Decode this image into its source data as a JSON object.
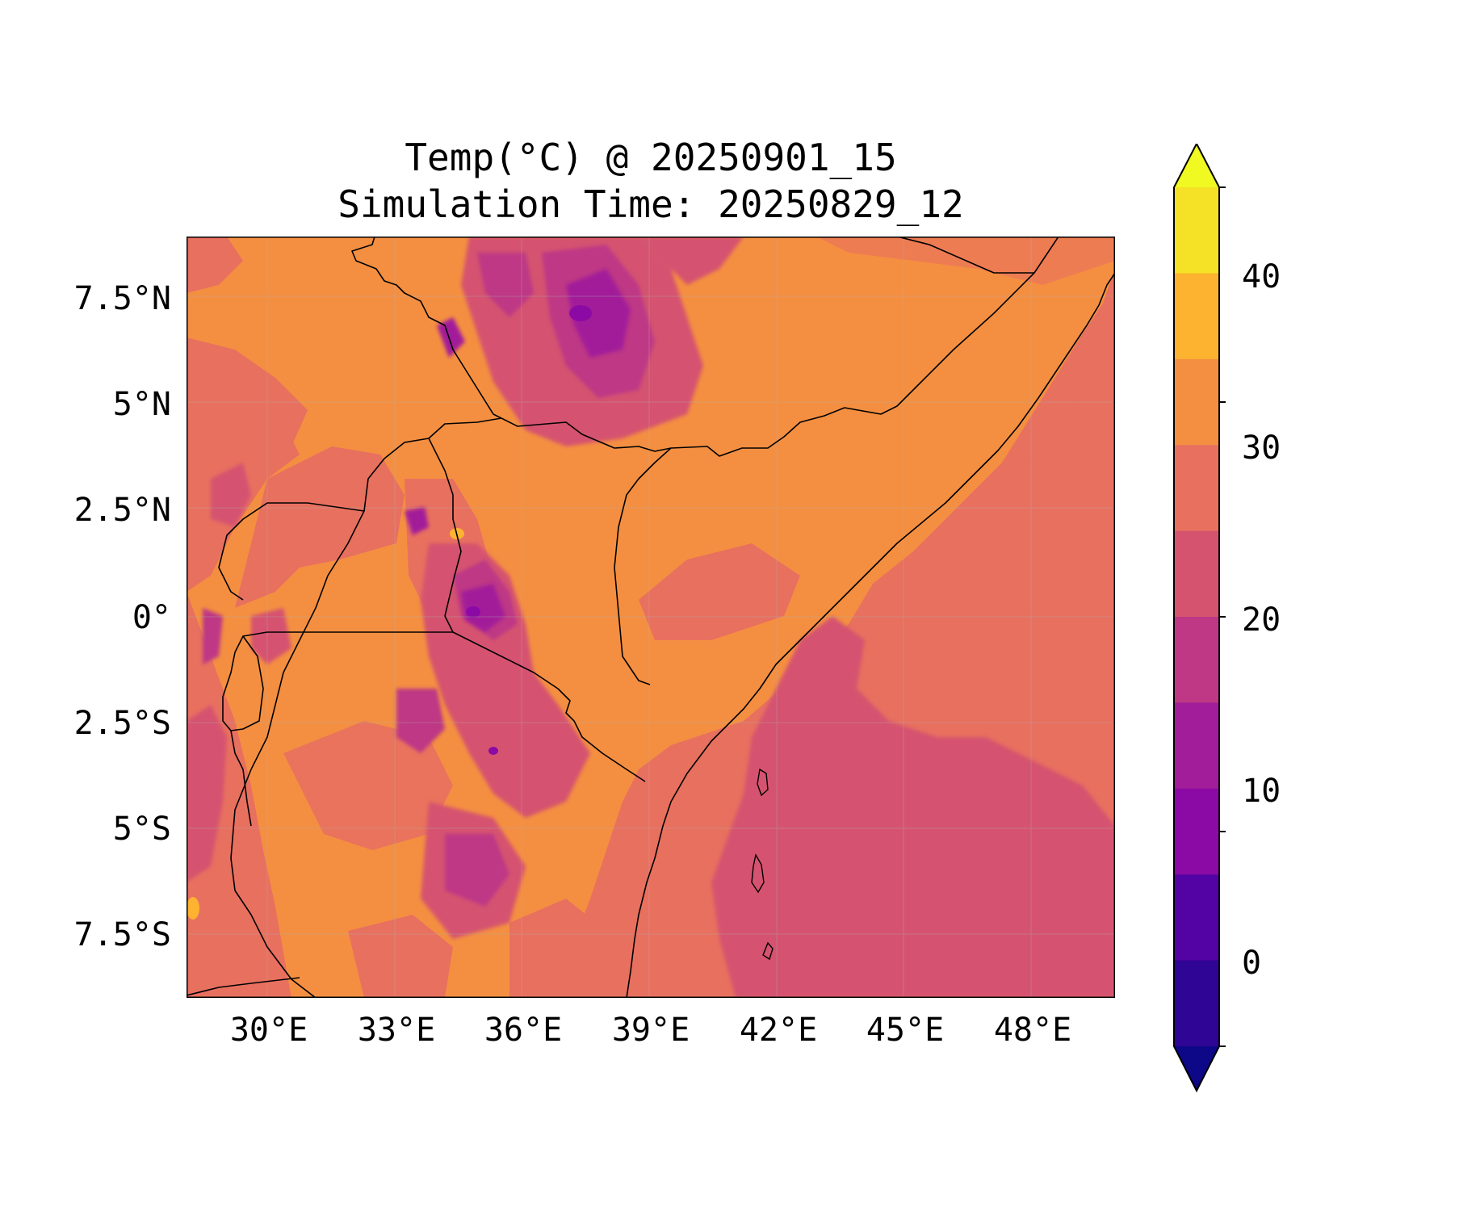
{
  "title": {
    "line1": "Temp(°C) @ 20250901_15",
    "line2": "Simulation Time: 20250829_12"
  },
  "map": {
    "lon_range": [
      27.5,
      49.4
    ],
    "lat_range": [
      -9.0,
      9.0
    ],
    "x_ticks": [
      "30°E",
      "33°E",
      "36°E",
      "39°E",
      "42°E",
      "45°E",
      "48°E"
    ],
    "y_ticks": [
      "7.5°N",
      "5°N",
      "2.5°N",
      "0°",
      "2.5°S",
      "5°S",
      "7.5°S"
    ],
    "field": "Temp(°C)"
  },
  "colorbar": {
    "min": -5,
    "max": 45,
    "step": 5,
    "extend": "both",
    "tick_labels": [
      "0",
      "10",
      "20",
      "30",
      "40"
    ],
    "colors": [
      "#0d0887",
      "#2f0596",
      "#5302a3",
      "#8b0aa5",
      "#a21d9a",
      "#be3885",
      "#d5536f",
      "#e8705f",
      "#f48f41",
      "#fdb32f",
      "#f5e125",
      "#f0f921"
    ]
  }
}
